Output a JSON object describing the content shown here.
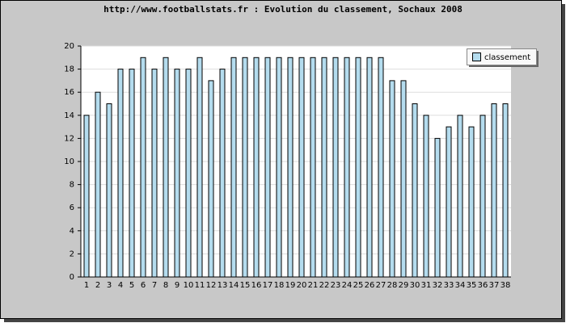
{
  "chart_data": {
    "type": "bar",
    "title": "http://www.footballstats.fr : Evolution du classement, Sochaux 2008",
    "categories": [
      "1",
      "2",
      "3",
      "4",
      "5",
      "6",
      "7",
      "8",
      "9",
      "10",
      "11",
      "12",
      "13",
      "14",
      "15",
      "16",
      "17",
      "18",
      "19",
      "20",
      "21",
      "22",
      "23",
      "24",
      "25",
      "26",
      "27",
      "28",
      "29",
      "30",
      "31",
      "32",
      "33",
      "34",
      "35",
      "36",
      "37",
      "38"
    ],
    "series": [
      {
        "name": "classement",
        "color": "#b4dcee",
        "values": [
          14,
          16,
          15,
          18,
          18,
          19,
          18,
          19,
          18,
          18,
          19,
          17,
          18,
          19,
          19,
          19,
          19,
          19,
          19,
          19,
          19,
          19,
          19,
          19,
          19,
          19,
          19,
          17,
          17,
          15,
          14,
          12,
          13,
          14,
          13,
          14,
          15,
          15
        ]
      }
    ],
    "ylim": [
      0,
      20
    ],
    "yticks": [
      0,
      2,
      4,
      6,
      8,
      10,
      12,
      14,
      16,
      18,
      20
    ],
    "grid": true,
    "legend": "top-right"
  }
}
